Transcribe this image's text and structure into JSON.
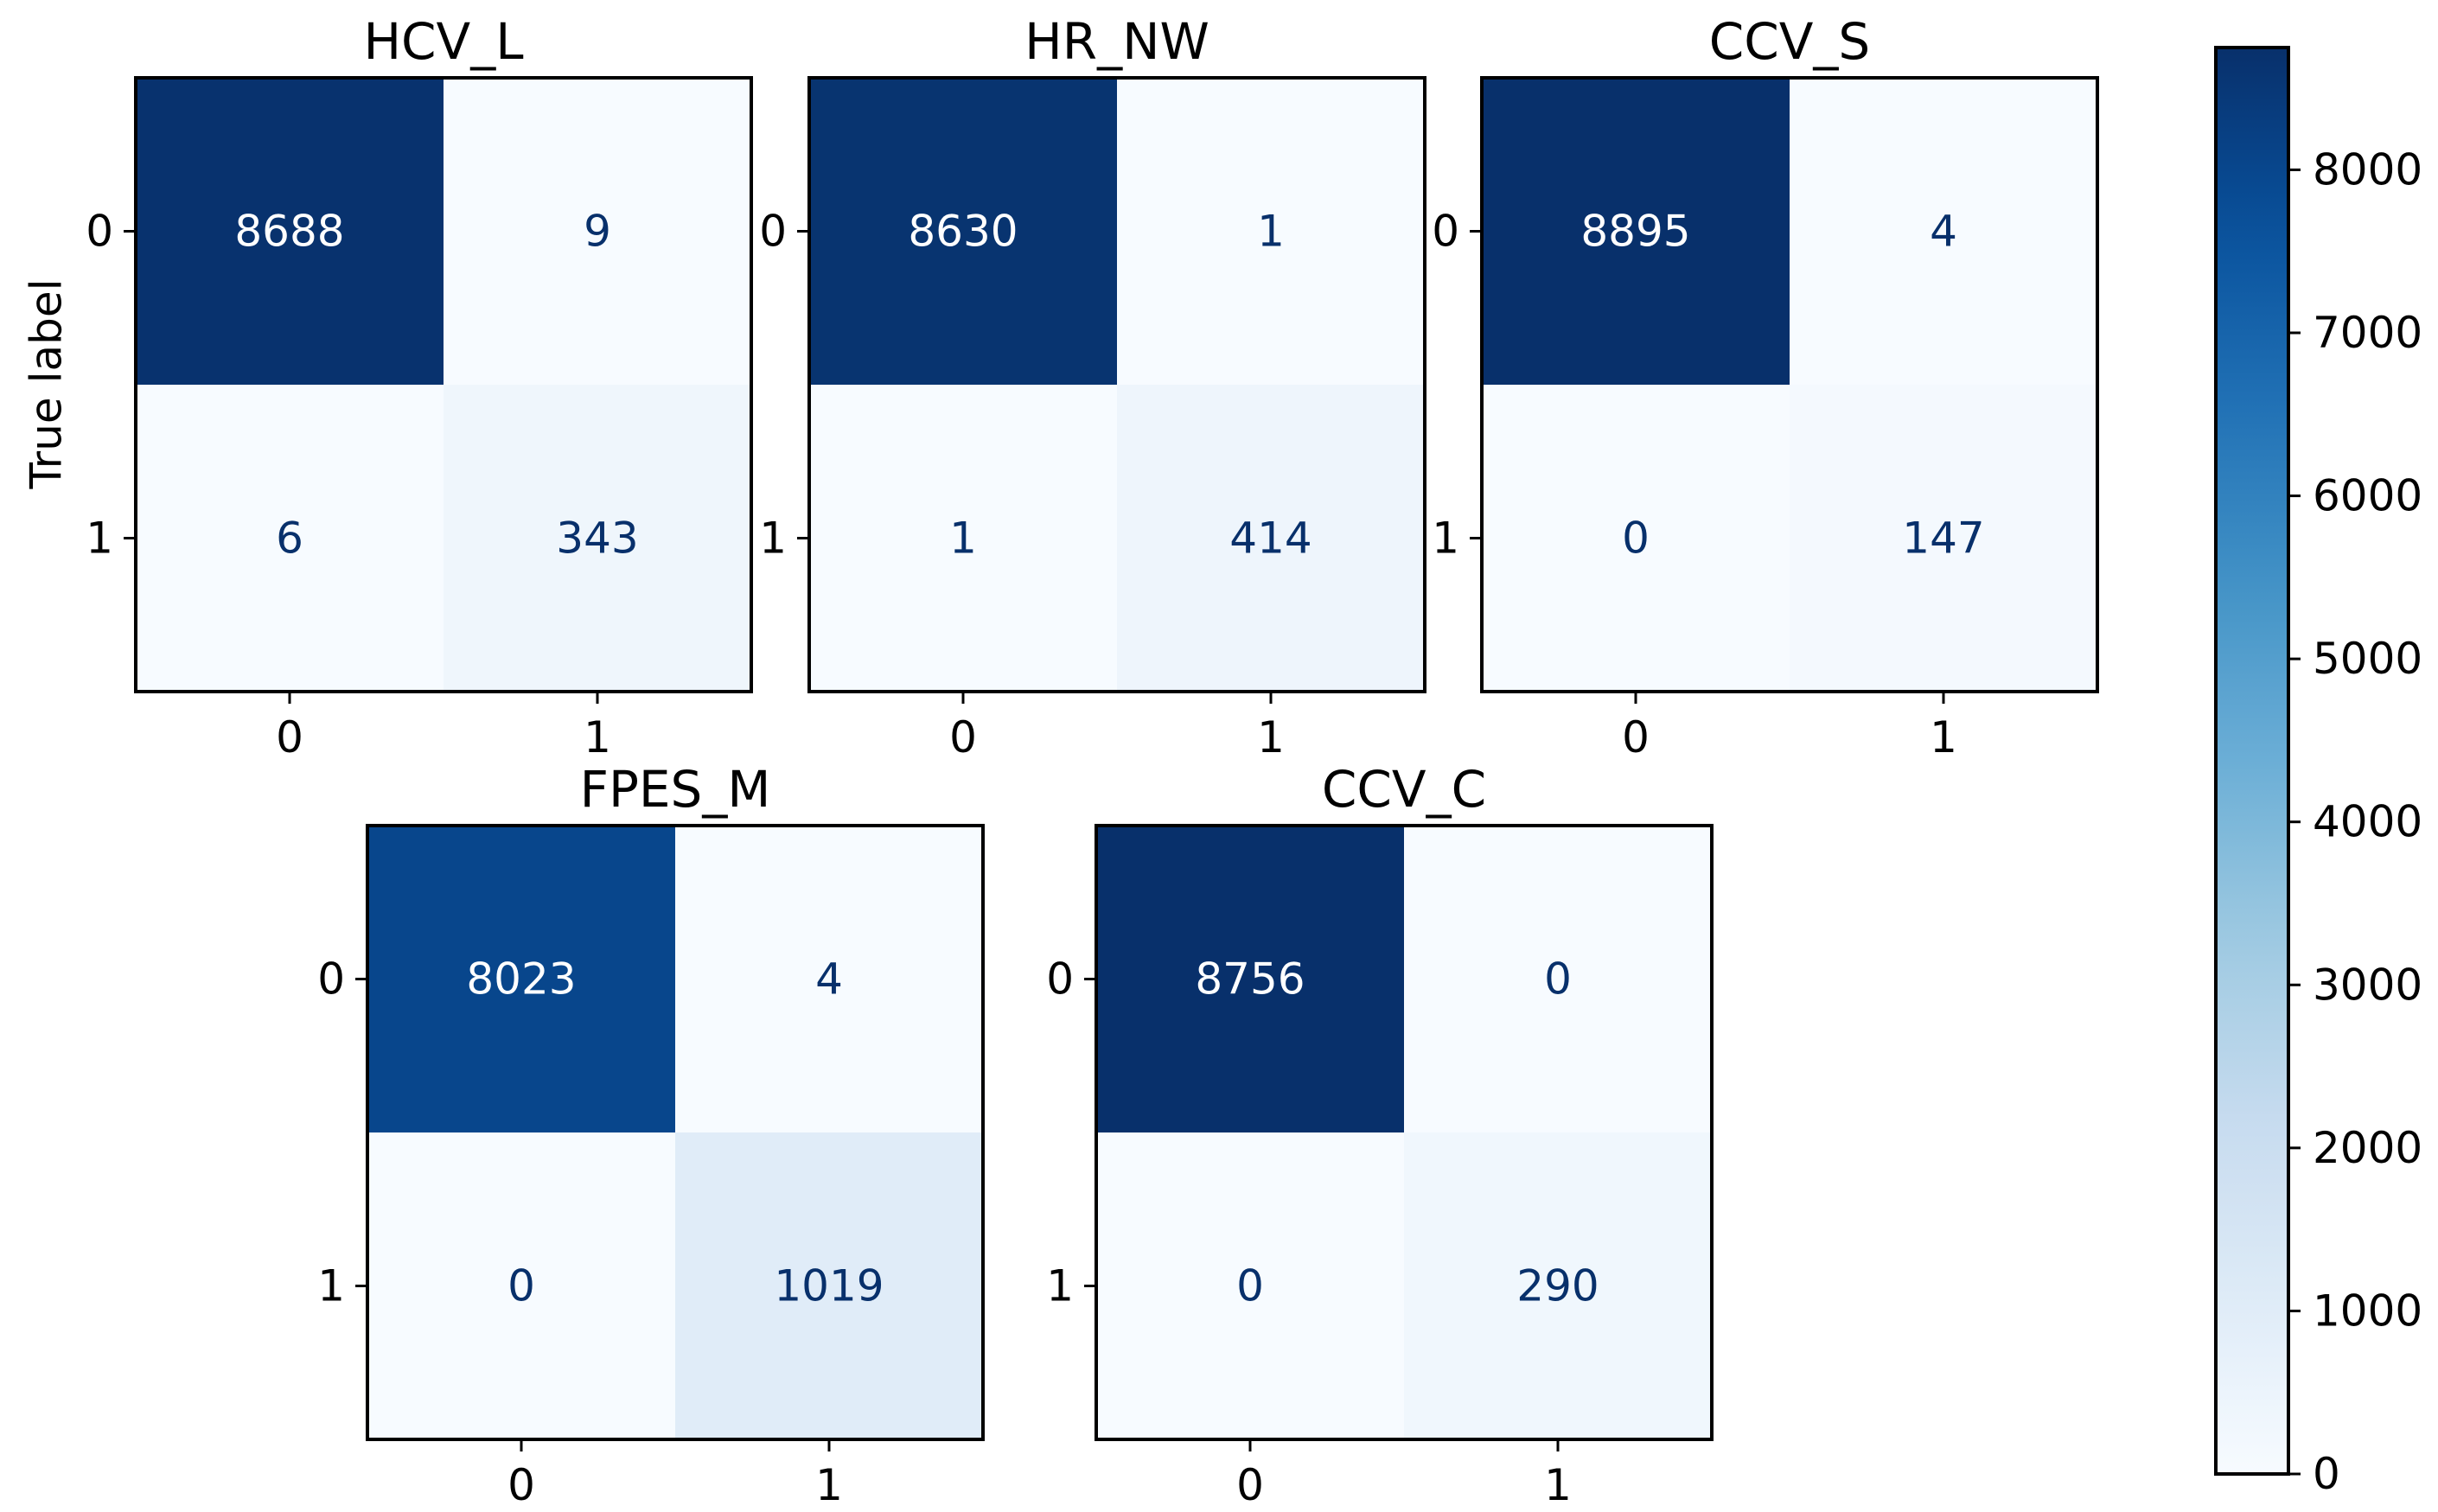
{
  "chart_data": {
    "type": "heatmap",
    "colormap": "Blues",
    "value_range": [
      0,
      8750
    ],
    "ylabel": "True label",
    "panels": [
      {
        "title": "HCV_L",
        "x_ticks": [
          "0",
          "1"
        ],
        "y_ticks": [
          "0",
          "1"
        ],
        "matrix": [
          [
            8688,
            9
          ],
          [
            6,
            343
          ]
        ]
      },
      {
        "title": "HR_NW",
        "x_ticks": [
          "0",
          "1"
        ],
        "y_ticks": [
          "0",
          "1"
        ],
        "matrix": [
          [
            8630,
            1
          ],
          [
            1,
            414
          ]
        ]
      },
      {
        "title": "CCV_S",
        "x_ticks": [
          "0",
          "1"
        ],
        "y_ticks": [
          "0",
          "1"
        ],
        "matrix": [
          [
            8895,
            4
          ],
          [
            0,
            147
          ]
        ]
      },
      {
        "title": "FPES_M",
        "x_ticks": [
          "0",
          "1"
        ],
        "y_ticks": [
          "0",
          "1"
        ],
        "matrix": [
          [
            8023,
            4
          ],
          [
            0,
            1019
          ]
        ]
      },
      {
        "title": "CCV_C",
        "x_ticks": [
          "0",
          "1"
        ],
        "y_ticks": [
          "0",
          "1"
        ],
        "matrix": [
          [
            8756,
            0
          ],
          [
            0,
            290
          ]
        ]
      }
    ],
    "colorbar": {
      "ticks": [
        "0",
        "1000",
        "2000",
        "3000",
        "4000",
        "5000",
        "6000",
        "7000",
        "8000"
      ],
      "tick_values": [
        0,
        1000,
        2000,
        3000,
        4000,
        5000,
        6000,
        7000,
        8000
      ]
    }
  }
}
